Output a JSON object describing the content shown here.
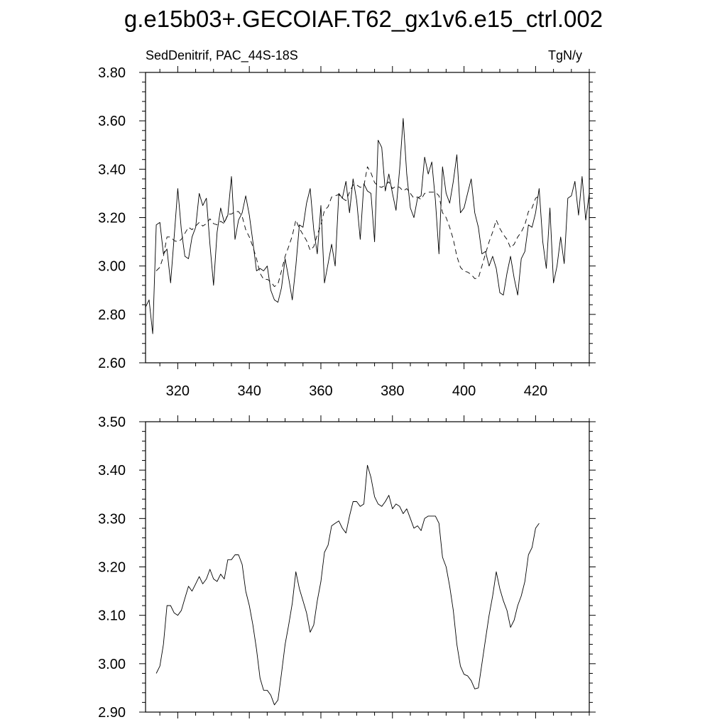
{
  "title": "g.e15b03+.GECOIAF.T62_gx1v6.e15_ctrl.002",
  "chart_data": [
    {
      "type": "line",
      "left_string": "SedDenitrif, PAC_44S-18S",
      "right_string": "TgN/y",
      "xlim": [
        311,
        435
      ],
      "ylim": [
        2.6,
        3.8
      ],
      "x_ticks": [
        320,
        340,
        360,
        380,
        400,
        420
      ],
      "x_tick_labels": [
        "320",
        "340",
        "360",
        "380",
        "400",
        "420"
      ],
      "y_ticks": [
        2.6,
        2.8,
        3.0,
        3.2,
        3.4,
        3.6,
        3.8
      ],
      "y_tick_labels": [
        "2.60",
        "2.80",
        "3.00",
        "3.20",
        "3.40",
        "3.60",
        "3.80"
      ],
      "grid": false,
      "series": [
        {
          "style": "solid",
          "x_start": 311,
          "x_step": 1,
          "values": [
            2.83,
            2.86,
            2.72,
            3.17,
            3.18,
            3.05,
            3.07,
            2.93,
            3.12,
            3.32,
            3.15,
            3.04,
            3.03,
            3.12,
            3.16,
            3.3,
            3.25,
            3.28,
            3.09,
            2.92,
            3.14,
            3.24,
            3.18,
            3.21,
            3.37,
            3.11,
            3.19,
            3.22,
            3.29,
            3.21,
            3.1,
            2.98,
            2.99,
            2.98,
            3.0,
            2.9,
            2.86,
            2.85,
            2.91,
            3.03,
            2.95,
            2.86,
            3.0,
            3.17,
            3.16,
            3.26,
            3.32,
            3.15,
            3.05,
            3.25,
            2.93,
            3.01,
            3.09,
            3.0,
            3.3,
            3.28,
            3.35,
            3.22,
            3.36,
            3.27,
            3.11,
            3.34,
            3.31,
            3.3,
            3.1,
            3.52,
            3.49,
            3.31,
            3.38,
            3.3,
            3.23,
            3.4,
            3.61,
            3.38,
            3.24,
            3.2,
            3.28,
            3.29,
            3.45,
            3.38,
            3.43,
            3.27,
            3.05,
            3.41,
            3.3,
            3.26,
            3.35,
            3.46,
            3.22,
            3.24,
            3.3,
            3.36,
            3.22,
            3.16,
            3.05,
            3.06,
            3.0,
            3.04,
            2.99,
            2.89,
            2.88,
            2.97,
            3.04,
            2.95,
            2.88,
            3.03,
            3.06,
            3.17,
            3.16,
            3.22,
            3.32,
            3.1,
            2.99,
            3.24,
            2.93,
            3.0,
            3.12,
            3.01,
            3.28,
            3.29,
            3.35,
            3.21,
            3.37,
            3.19,
            3.3,
            3.3
          ]
        },
        {
          "style": "dashed",
          "x_start": 314,
          "x_step": 1,
          "values": [
            2.98,
            2.995,
            3.04,
            3.12,
            3.12,
            3.105,
            3.1,
            3.11,
            3.135,
            3.16,
            3.15,
            3.165,
            3.18,
            3.165,
            3.175,
            3.195,
            3.175,
            3.17,
            3.185,
            3.175,
            3.215,
            3.215,
            3.225,
            3.225,
            3.205,
            3.15,
            3.12,
            3.08,
            3.03,
            2.97,
            2.945,
            2.945,
            2.935,
            2.915,
            2.925,
            2.98,
            3.04,
            3.08,
            3.125,
            3.19,
            3.155,
            3.13,
            3.105,
            3.065,
            3.08,
            3.13,
            3.17,
            3.23,
            3.245,
            3.285,
            3.29,
            3.295,
            3.28,
            3.27,
            3.305,
            3.335,
            3.335,
            3.325,
            3.33,
            3.41,
            3.385,
            3.345,
            3.33,
            3.325,
            3.335,
            3.348,
            3.32,
            3.33,
            3.325,
            3.31,
            3.32,
            3.3,
            3.28,
            3.285,
            3.275,
            3.3,
            3.305,
            3.305,
            3.305,
            3.29,
            3.22,
            3.2,
            3.16,
            3.11,
            3.04,
            2.995,
            2.978,
            2.975,
            2.965,
            2.948,
            2.95,
            3.0,
            3.05,
            3.1,
            3.14,
            3.19,
            3.155,
            3.13,
            3.11,
            3.075,
            3.09,
            3.12,
            3.14,
            3.17,
            3.225,
            3.24,
            3.28,
            3.29
          ]
        }
      ]
    },
    {
      "type": "line",
      "xlim": [
        311,
        435
      ],
      "ylim": [
        2.9,
        3.5
      ],
      "x_ticks": [
        320,
        340,
        360,
        380,
        400,
        420
      ],
      "y_ticks": [
        2.9,
        3.0,
        3.1,
        3.2,
        3.3,
        3.4,
        3.5
      ],
      "y_tick_labels": [
        "2.90",
        "3.00",
        "3.10",
        "3.20",
        "3.30",
        "3.40",
        "3.50"
      ],
      "grid": false,
      "series": [
        {
          "style": "solid",
          "x_start": 314,
          "x_step": 1,
          "values": [
            2.98,
            2.995,
            3.04,
            3.12,
            3.12,
            3.105,
            3.1,
            3.11,
            3.135,
            3.16,
            3.15,
            3.165,
            3.18,
            3.165,
            3.175,
            3.195,
            3.175,
            3.17,
            3.185,
            3.175,
            3.215,
            3.215,
            3.225,
            3.225,
            3.205,
            3.15,
            3.12,
            3.08,
            3.03,
            2.97,
            2.945,
            2.945,
            2.935,
            2.915,
            2.925,
            2.98,
            3.04,
            3.08,
            3.125,
            3.19,
            3.155,
            3.13,
            3.105,
            3.065,
            3.08,
            3.13,
            3.17,
            3.23,
            3.245,
            3.285,
            3.29,
            3.295,
            3.28,
            3.27,
            3.305,
            3.335,
            3.335,
            3.325,
            3.33,
            3.41,
            3.385,
            3.345,
            3.33,
            3.325,
            3.335,
            3.348,
            3.32,
            3.33,
            3.325,
            3.31,
            3.32,
            3.3,
            3.28,
            3.285,
            3.275,
            3.3,
            3.305,
            3.305,
            3.305,
            3.29,
            3.22,
            3.2,
            3.16,
            3.11,
            3.04,
            2.995,
            2.978,
            2.975,
            2.965,
            2.948,
            2.95,
            3.0,
            3.05,
            3.1,
            3.14,
            3.19,
            3.155,
            3.13,
            3.11,
            3.075,
            3.09,
            3.12,
            3.14,
            3.17,
            3.225,
            3.24,
            3.28,
            3.29
          ]
        }
      ]
    }
  ]
}
